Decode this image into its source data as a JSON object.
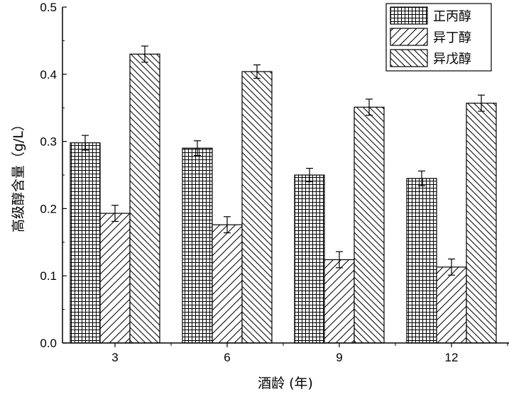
{
  "chart_data": {
    "type": "bar",
    "categories": [
      "3",
      "6",
      "9",
      "12"
    ],
    "series": [
      {
        "name": "正丙醇",
        "values": [
          0.298,
          0.29,
          0.25,
          0.245
        ],
        "errors": [
          0.011,
          0.011,
          0.01,
          0.011
        ],
        "pattern": "grid"
      },
      {
        "name": "异丁醇",
        "values": [
          0.193,
          0.176,
          0.124,
          0.113
        ],
        "errors": [
          0.012,
          0.012,
          0.012,
          0.012
        ],
        "pattern": "forward-diagonal"
      },
      {
        "name": "异戊醇",
        "values": [
          0.43,
          0.404,
          0.351,
          0.357
        ],
        "errors": [
          0.012,
          0.01,
          0.012,
          0.012
        ],
        "pattern": "back-diagonal"
      }
    ],
    "xlabel": "酒龄 (年)",
    "ylabel": "高级醇含量（g/L）",
    "ylim": [
      0,
      0.5
    ],
    "yticks": [
      "0.0",
      "0.1",
      "0.2",
      "0.3",
      "0.4",
      "0.5"
    ],
    "legend_position": "top-right",
    "grid": false
  }
}
